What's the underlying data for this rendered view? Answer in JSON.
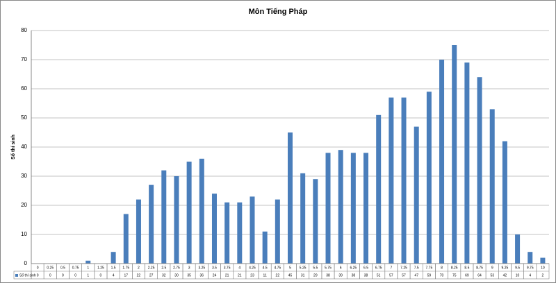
{
  "chart_data": {
    "type": "bar",
    "title": "Môn Tiếng Pháp",
    "y_label": "Số thí sinh",
    "categories": [
      "0",
      "0.25",
      "0.5",
      "0.75",
      "1",
      "1.25",
      "1.5",
      "1.75",
      "2",
      "2.25",
      "2.5",
      "2.75",
      "3",
      "3.25",
      "3.5",
      "3.75",
      "4",
      "4.25",
      "4.5",
      "4.75",
      "5",
      "5.25",
      "5.5",
      "5.75",
      "6",
      "6.25",
      "6.5",
      "6.75",
      "7",
      "7.25",
      "7.5",
      "7.75",
      "8",
      "8.25",
      "8.5",
      "8.75",
      "9",
      "9.25",
      "9.5",
      "9.75",
      "10"
    ],
    "series": [
      {
        "name": "Số thí sinh",
        "color": "#4a7ebb",
        "values": [
          0,
          0,
          0,
          0,
          1,
          0,
          4,
          17,
          22,
          27,
          32,
          30,
          35,
          36,
          24,
          21,
          21,
          23,
          11,
          22,
          45,
          31,
          29,
          38,
          39,
          38,
          38,
          51,
          57,
          57,
          47,
          59,
          70,
          75,
          69,
          64,
          53,
          42,
          10,
          4,
          2
        ]
      }
    ],
    "ylim": [
      0,
      80
    ],
    "yticks": [
      0,
      10,
      20,
      30,
      40,
      50,
      60,
      70,
      80
    ],
    "grid": true
  }
}
